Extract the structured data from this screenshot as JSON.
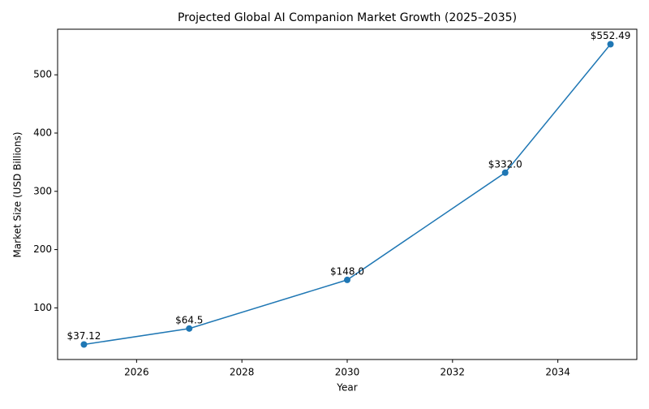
{
  "chart_data": {
    "type": "line",
    "title": "Projected Global AI Companion Market Growth (2025–2035)",
    "x_label": "Year",
    "y_label": "Market Size (USD Billions)",
    "x": [
      2025,
      2027,
      2030,
      2033,
      2035
    ],
    "values": [
      37.12,
      64.5,
      148.0,
      332.0,
      552.49
    ],
    "value_labels": [
      "$37.12",
      "$64.5",
      "$148.0",
      "$332.0",
      "$552.49"
    ],
    "color": "#1f77b4",
    "xlim": [
      2024.5,
      2035.5
    ],
    "xticks": [
      2026,
      2028,
      2030,
      2032,
      2034
    ],
    "ylim": [
      11.35,
      578.26
    ],
    "yticks": [
      100,
      200,
      300,
      400,
      500
    ],
    "grid": false
  }
}
